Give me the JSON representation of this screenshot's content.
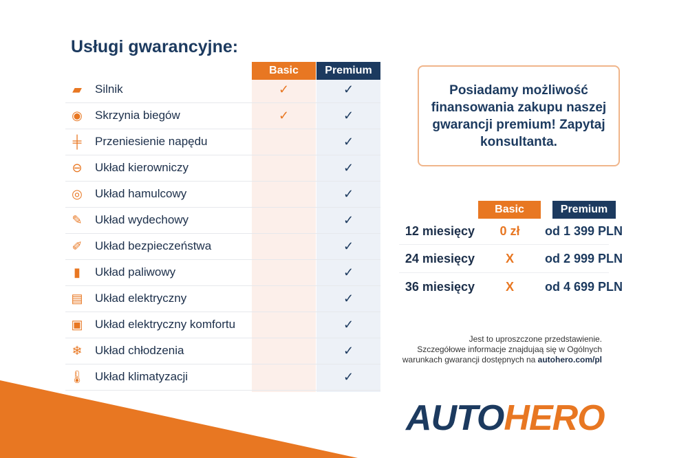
{
  "title": "Usługi gwarancyjne:",
  "table": {
    "basic_label": "Basic",
    "premium_label": "Premium",
    "rows": [
      {
        "icon": "engine-icon",
        "label": "Silnik",
        "basic": "✓",
        "premium": "✓"
      },
      {
        "icon": "gearbox-icon",
        "label": "Skrzynia biegów",
        "basic": "✓",
        "premium": "✓"
      },
      {
        "icon": "drivetrain-icon",
        "label": "Przeniesienie napędu",
        "basic": "",
        "premium": "✓"
      },
      {
        "icon": "steering-wheel-icon",
        "label": "Układ kierowniczy",
        "basic": "",
        "premium": "✓"
      },
      {
        "icon": "brake-disc-icon",
        "label": "Układ hamulcowy",
        "basic": "",
        "premium": "✓"
      },
      {
        "icon": "exhaust-icon",
        "label": "Układ wydechowy",
        "basic": "",
        "premium": "✓"
      },
      {
        "icon": "airbag-icon",
        "label": "Układ bezpieczeństwa",
        "basic": "",
        "premium": "✓"
      },
      {
        "icon": "fuel-pump-icon",
        "label": "Układ paliwowy",
        "basic": "",
        "premium": "✓"
      },
      {
        "icon": "battery-icon",
        "label": "Układ elektryczny",
        "basic": "",
        "premium": "✓"
      },
      {
        "icon": "chip-icon",
        "label": "Układ elektryczny komfortu",
        "basic": "",
        "premium": "✓"
      },
      {
        "icon": "snowflake-icon",
        "label": "Układ chłodzenia",
        "basic": "",
        "premium": "✓"
      },
      {
        "icon": "thermometer-icon",
        "label": "Układ klimatyzacji",
        "basic": "",
        "premium": "✓"
      }
    ]
  },
  "promo": "Posiadamy możliwość finansowania zakupu naszej gwarancji premium! Zapytaj konsultanta.",
  "pricing": {
    "basic_label": "Basic",
    "premium_label": "Premium",
    "rows": [
      {
        "months": "12 miesięcy",
        "basic": "0 zł",
        "premium": "od 1 399 PLN"
      },
      {
        "months": "24 miesięcy",
        "basic": "X",
        "premium": "od 2 999 PLN"
      },
      {
        "months": "36 miesięcy",
        "basic": "X",
        "premium": "od 4 699 PLN"
      }
    ]
  },
  "note": {
    "line1": "Jest to uproszczone przedstawienie.",
    "line2": "Szczegółowe informacje znajdujaą się w Ogólnych",
    "line3": "warunkach gwarancji dostępnych na ",
    "link": "autohero.com/pl"
  },
  "logo": {
    "part1": "AUTO",
    "part2": "HERO"
  },
  "colors": {
    "orange": "#e87722",
    "navy": "#1c3a5f"
  }
}
